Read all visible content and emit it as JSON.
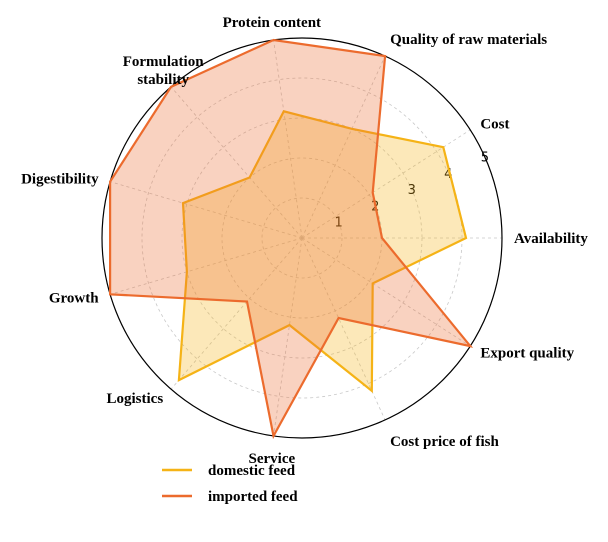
{
  "chart_data": {
    "type": "radar",
    "categories": [
      "Availability",
      "Cost",
      "Quality of raw materials",
      "Protein content",
      "Formulation stability",
      "Digestibility",
      "Growth",
      "Logistics",
      "Service",
      "Cost price of fish",
      "Export quality"
    ],
    "series": [
      {
        "name": "domestic feed",
        "color": "#f5b316",
        "values": [
          4.1,
          4.2,
          3.0,
          3.2,
          2.0,
          3.1,
          3.0,
          4.7,
          2.2,
          4.2,
          2.1
        ]
      },
      {
        "name": "imported feed",
        "color": "#ec6b2d",
        "values": [
          2.0,
          2.1,
          5.0,
          5.0,
          5.0,
          5.0,
          5.0,
          2.1,
          5.0,
          2.2,
          5.0
        ]
      }
    ],
    "rlim": [
      0,
      5
    ],
    "rticks": [
      1,
      2,
      3,
      4,
      5
    ],
    "grid": true,
    "legend": "bottom"
  }
}
